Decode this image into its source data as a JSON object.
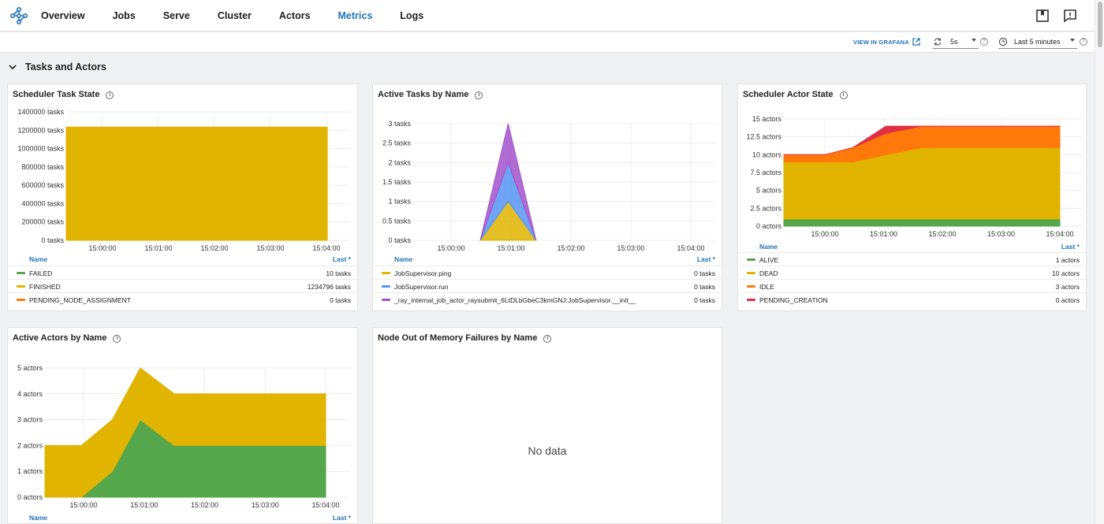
{
  "nav": {
    "items": [
      "Overview",
      "Jobs",
      "Serve",
      "Cluster",
      "Actors",
      "Metrics",
      "Logs"
    ],
    "active": "Metrics",
    "logo_icon": "ray-logo-icon",
    "right_icons": [
      "bookmark-icon",
      "feedback-icon"
    ]
  },
  "toolbar": {
    "grafana_label": "VIEW IN GRAFANA",
    "refresh_value": "5s",
    "time_range_value": "Last 5 minutes"
  },
  "section": {
    "title": "Tasks and Actors"
  },
  "panels": {
    "scheduler_task_state": {
      "title": "Scheduler Task State",
      "legend_name": "Name",
      "legend_value": "Last *",
      "legend": [
        {
          "name": "FAILED",
          "value": "10 tasks",
          "color": "#56a64b"
        },
        {
          "name": "FINISHED",
          "value": "1234796 tasks",
          "color": "#e0b400"
        },
        {
          "name": "PENDING_NODE_ASSIGNMENT",
          "value": "0 tasks",
          "color": "#ff780a"
        }
      ],
      "chart_data": {
        "type": "area",
        "y_ticks": [
          "1400000 tasks",
          "1200000 tasks",
          "1000000 tasks",
          "800000 tasks",
          "600000 tasks",
          "400000 tasks",
          "200000 tasks",
          "0 tasks"
        ],
        "x_ticks": [
          "15:00:00",
          "15:01:00",
          "15:02:00",
          "15:03:00",
          "15:04:00"
        ],
        "ylim": [
          0,
          1400000
        ],
        "series": [
          {
            "name": "FINISHED",
            "color": "#e0b400",
            "x": [
              0,
              1
            ],
            "values": [
              1234796,
              1234796
            ]
          }
        ]
      }
    },
    "active_tasks_by_name": {
      "title": "Active Tasks by Name",
      "legend_name": "Name",
      "legend_value": "Last *",
      "legend": [
        {
          "name": "JobSupervisor.ping",
          "value": "0 tasks",
          "color": "#e0b400"
        },
        {
          "name": "JobSupervisor.run",
          "value": "0 tasks",
          "color": "#5794f2"
        },
        {
          "name": "_ray_internal_job_actor_raysubmit_6LtDLbGbeC3kmGNJ:JobSupervisor.__init__",
          "value": "0 tasks",
          "color": "#a352cc"
        }
      ],
      "chart_data": {
        "type": "area",
        "y_ticks": [
          "3 tasks",
          "2.5 tasks",
          "2 tasks",
          "1.5 tasks",
          "1 tasks",
          "0.5 tasks",
          "0 tasks"
        ],
        "x_ticks": [
          "15:00:00",
          "15:01:00",
          "15:02:00",
          "15:03:00",
          "15:04:00"
        ],
        "ylim": [
          0,
          3
        ],
        "series": [
          {
            "name": "JobSupervisor.ping",
            "color": "#e0b400",
            "x": [
              0.24,
              0.34,
              0.44
            ],
            "values": [
              0,
              1,
              0
            ]
          },
          {
            "name": "JobSupervisor.run",
            "color": "#5794f2",
            "x": [
              0.24,
              0.34,
              0.44
            ],
            "values": [
              0,
              1,
              0
            ]
          },
          {
            "name": "_ray_internal_job_actor_raysubmit_6LtDLbGbeC3kmGNJ:JobSupervisor.__init__",
            "color": "#a352cc",
            "x": [
              0.24,
              0.34,
              0.44
            ],
            "values": [
              0,
              1,
              0
            ]
          }
        ]
      }
    },
    "scheduler_actor_state": {
      "title": "Scheduler Actor State",
      "legend_name": "Name",
      "legend_value": "Last *",
      "legend": [
        {
          "name": "ALIVE",
          "value": "1 actors",
          "color": "#56a64b"
        },
        {
          "name": "DEAD",
          "value": "10 actors",
          "color": "#e0b400"
        },
        {
          "name": "IDLE",
          "value": "3 actors",
          "color": "#ff780a"
        },
        {
          "name": "PENDING_CREATION",
          "value": "0 actors",
          "color": "#e02f44"
        }
      ],
      "chart_data": {
        "type": "area",
        "y_ticks": [
          "15 actors",
          "12.5 actors",
          "10 actors",
          "7.5 actors",
          "5 actors",
          "2.5 actors",
          "0 actors"
        ],
        "x_ticks": [
          "15:00:00",
          "15:01:00",
          "15:02:00",
          "15:03:00",
          "15:04:00"
        ],
        "ylim": [
          0,
          15
        ],
        "series": [
          {
            "name": "ALIVE",
            "color": "#56a64b",
            "x": [
              0,
              0.15,
              0.25,
              0.37,
              0.5,
              1
            ],
            "values": [
              1,
              1,
              1,
              1,
              1,
              1
            ]
          },
          {
            "name": "DEAD",
            "color": "#e0b400",
            "x": [
              0,
              0.15,
              0.25,
              0.37,
              0.5,
              1
            ],
            "values": [
              8,
              8,
              8,
              9,
              10,
              10
            ]
          },
          {
            "name": "IDLE",
            "color": "#ff780a",
            "x": [
              0,
              0.15,
              0.25,
              0.37,
              0.5,
              1
            ],
            "values": [
              1,
              1,
              2,
              3,
              3,
              3
            ]
          },
          {
            "name": "PENDING_CREATION",
            "color": "#e02f44",
            "x": [
              0,
              0.15,
              0.25,
              0.37,
              0.5,
              1
            ],
            "values": [
              0,
              0,
              0,
              1,
              0,
              0
            ]
          }
        ]
      }
    },
    "active_actors_by_name": {
      "title": "Active Actors by Name",
      "legend_name": "Name",
      "legend_value": "Last *",
      "chart_data": {
        "type": "area",
        "y_ticks": [
          "5 actors",
          "4 actors",
          "3 actors",
          "2 actors",
          "1 actors",
          "0 actors"
        ],
        "x_ticks": [
          "15:00:00",
          "15:01:00",
          "15:02:00",
          "15:03:00",
          "15:04:00"
        ],
        "ylim": [
          0,
          5
        ],
        "series": [
          {
            "color": "#56a64b",
            "x": [
              0,
              0.13,
              0.24,
              0.34,
              0.46,
              1
            ],
            "values": [
              0,
              0,
              1,
              3,
              2,
              2
            ]
          },
          {
            "color": "#e0b400",
            "x": [
              0,
              0.13,
              0.24,
              0.34,
              0.46,
              1
            ],
            "values": [
              2,
              2,
              2,
              2,
              2,
              2
            ]
          }
        ]
      }
    },
    "node_oom": {
      "title": "Node Out of Memory Failures by Name",
      "no_data": "No data"
    }
  }
}
